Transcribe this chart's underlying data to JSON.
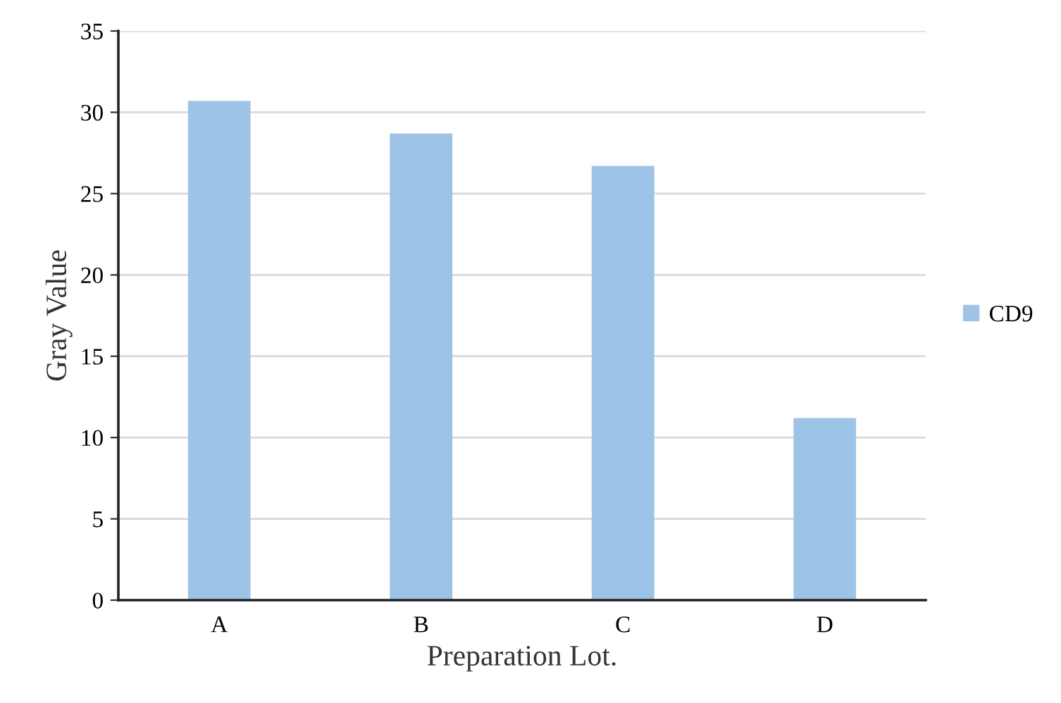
{
  "chart_data": {
    "type": "bar",
    "xlabel": "Preparation Lot.",
    "ylabel": "Gray Value",
    "categories": [
      "A",
      "B",
      "C",
      "D"
    ],
    "series": [
      {
        "name": "CD9",
        "color": "#9dc3e6",
        "values": [
          30.7,
          28.7,
          26.7,
          11.2
        ]
      }
    ],
    "ylim": [
      0,
      35
    ],
    "yticks": [
      0,
      5,
      10,
      15,
      20,
      25,
      30,
      35
    ],
    "grid": "y",
    "legend": "right"
  }
}
